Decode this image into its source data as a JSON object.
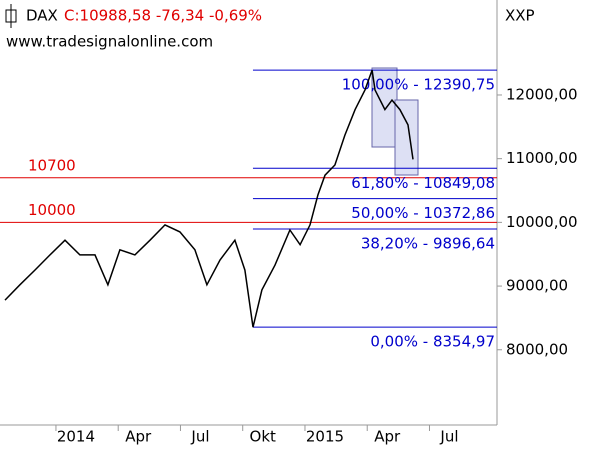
{
  "chart_data": {
    "type": "line",
    "symbol": "DAX",
    "quote": "C:10988,58 -76,34 -0,69%",
    "source": "www.tradesignalonline.com",
    "axis_label": "XXP",
    "color": "#000000",
    "x": [
      -3.42,
      -2.7,
      -1.98,
      -1.25,
      -0.53,
      0.19,
      0.92,
      1.54,
      2.12,
      2.84,
      3.57,
      4.29,
      5.01,
      5.73,
      6.31,
      6.94,
      7.66,
      8.14,
      8.53,
      8.96,
      9.59,
      10.31,
      10.8,
      11.28,
      11.66,
      12.0,
      12.48,
      12.96,
      13.45,
      13.93,
      14.27,
      14.41,
      14.89,
      15.23,
      15.61,
      16.0,
      16.24
    ],
    "values": [
      8780,
      9020,
      9250,
      9490,
      9720,
      9490,
      9490,
      9020,
      9570,
      9490,
      9720,
      9960,
      9850,
      9570,
      9020,
      9410,
      9720,
      9250,
      8355,
      8940,
      9330,
      9880,
      9650,
      9960,
      10430,
      10740,
      10900,
      11370,
      11770,
      12080,
      12390,
      12080,
      11770,
      11920,
      11770,
      11530,
      10988
    ],
    "xlim": [
      -3.66,
      20.29
    ],
    "xticks": [
      {
        "value": 0,
        "label": "2014"
      },
      {
        "value": 3,
        "label": "Apr"
      },
      {
        "value": 6,
        "label": "Jul"
      },
      {
        "value": 9,
        "label": "Okt"
      },
      {
        "value": 12,
        "label": "2015"
      },
      {
        "value": 15,
        "label": "Apr"
      },
      {
        "value": 18,
        "label": "Jul"
      }
    ],
    "ylim": [
      6819,
      13491
    ],
    "yticks": [
      {
        "value": 8000,
        "label": "8000,00"
      },
      {
        "value": 9000,
        "label": "9000,00"
      },
      {
        "value": 10000,
        "label": "10000,00"
      },
      {
        "value": 11000,
        "label": "11000,00"
      },
      {
        "value": 12000,
        "label": "12000,00"
      }
    ],
    "hlines": [
      10700,
      10000
    ],
    "hline_color": "#e00000",
    "fib_start": 8.53,
    "fib_color": "#0000cc",
    "fib_levels": [
      {
        "value": 12390.75,
        "label": "100,00% - 12390,75"
      },
      {
        "value": 10849.08,
        "label": "61,80% - 10849,08"
      },
      {
        "value": 10372.86,
        "label": "50,00% - 10372,86"
      },
      {
        "value": 9896.64,
        "label": "38,20% - 9896,64"
      },
      {
        "value": 8354.97,
        "label": "0,00% - 8354,97"
      }
    ]
  }
}
